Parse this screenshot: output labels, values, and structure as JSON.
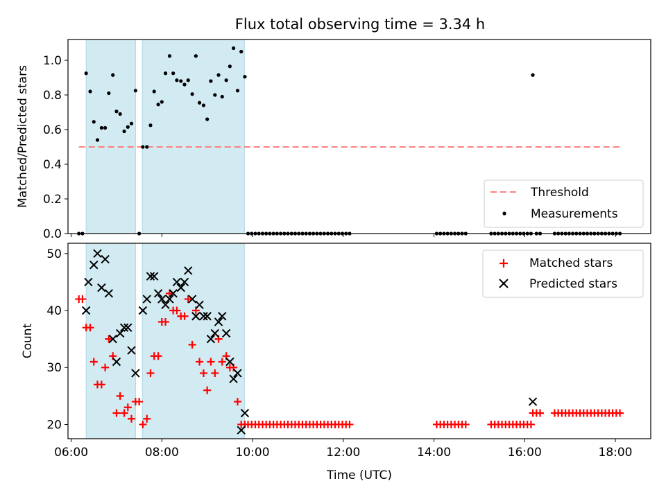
{
  "figure": {
    "title": "Flux total observing time = 3.34 h",
    "colors": {
      "shade": "#add8e6",
      "threshold": "#ff7f7f",
      "measurement": "#000000",
      "matched": "#ff0000",
      "predicted": "#000000"
    }
  },
  "chart_data": [
    {
      "type": "scatter",
      "title": "Flux total observing time = 3.34 h",
      "xlabel": "",
      "ylabel": "Matched/Predicted stars",
      "xlim": [
        5.93,
        18.78
      ],
      "ylim": [
        0,
        1.12
      ],
      "x_ticks": [
        "06:00",
        "08:00",
        "10:00",
        "12:00",
        "14:00",
        "16:00",
        "18:00"
      ],
      "x_tick_values": [
        6,
        8,
        10,
        12,
        14,
        16,
        18
      ],
      "y_ticks": [
        "0.0",
        "0.2",
        "0.4",
        "0.6",
        "0.8",
        "1.0"
      ],
      "y_tick_values": [
        0,
        0.2,
        0.4,
        0.6,
        0.8,
        1.0
      ],
      "shaded_intervals": [
        [
          6.33,
          7.42
        ],
        [
          7.57,
          9.82
        ]
      ],
      "legend": [
        "Threshold",
        "Measurements"
      ],
      "legend_position": "lower right",
      "threshold": {
        "name": "Threshold",
        "y": 0.5,
        "x_range": [
          6.17,
          18.1
        ]
      },
      "series": [
        {
          "name": "Measurements",
          "x": [
            6.17,
            6.25,
            6.33,
            6.42,
            6.5,
            6.58,
            6.67,
            6.75,
            6.83,
            6.92,
            7.0,
            7.08,
            7.17,
            7.25,
            7.33,
            7.42,
            7.5,
            7.58,
            7.67,
            7.75,
            7.83,
            7.92,
            8.0,
            8.08,
            8.17,
            8.25,
            8.33,
            8.42,
            8.5,
            8.58,
            8.67,
            8.75,
            8.83,
            8.92,
            9.0,
            9.08,
            9.17,
            9.25,
            9.33,
            9.42,
            9.5,
            9.58,
            9.67,
            9.75,
            9.83,
            9.9,
            9.98,
            10.06,
            10.14,
            10.22,
            10.3,
            10.38,
            10.46,
            10.54,
            10.62,
            10.7,
            10.78,
            10.86,
            10.94,
            11.02,
            11.1,
            11.18,
            11.26,
            11.34,
            11.42,
            11.5,
            11.58,
            11.66,
            11.74,
            11.82,
            11.9,
            11.98,
            12.06,
            12.14,
            14.06,
            14.14,
            14.22,
            14.3,
            14.38,
            14.46,
            14.54,
            14.62,
            14.7,
            15.26,
            15.34,
            15.42,
            15.5,
            15.58,
            15.66,
            15.74,
            15.82,
            15.9,
            15.98,
            16.06,
            16.14,
            16.18,
            16.26,
            16.34,
            16.66,
            16.74,
            16.82,
            16.9,
            16.98,
            17.06,
            17.14,
            17.22,
            17.3,
            17.38,
            17.46,
            17.54,
            17.62,
            17.7,
            17.78,
            17.86,
            17.94,
            18.02,
            18.1
          ],
          "y": [
            0.0,
            0.0,
            0.925,
            0.82,
            0.645,
            0.54,
            0.61,
            0.61,
            0.81,
            0.915,
            0.705,
            0.69,
            0.59,
            0.615,
            0.635,
            0.825,
            0.0,
            0.5,
            0.5,
            0.625,
            0.82,
            0.745,
            0.76,
            0.925,
            1.025,
            0.925,
            0.885,
            0.88,
            0.86,
            0.885,
            0.805,
            1.025,
            0.755,
            0.74,
            0.66,
            0.88,
            0.8,
            0.915,
            0.79,
            0.885,
            0.965,
            1.07,
            0.825,
            1.05,
            0.905,
            0.0,
            0.0,
            0.0,
            0.0,
            0.0,
            0.0,
            0.0,
            0.0,
            0.0,
            0.0,
            0.0,
            0.0,
            0.0,
            0.0,
            0.0,
            0.0,
            0.0,
            0.0,
            0.0,
            0.0,
            0.0,
            0.0,
            0.0,
            0.0,
            0.0,
            0.0,
            0.0,
            0.0,
            0.0,
            0.0,
            0.0,
            0.0,
            0.0,
            0.0,
            0.0,
            0.0,
            0.0,
            0.0,
            0.0,
            0.0,
            0.0,
            0.0,
            0.0,
            0.0,
            0.0,
            0.0,
            0.0,
            0.0,
            0.0,
            0.0,
            0.915,
            0.0,
            0.0,
            0.0,
            0.0,
            0.0,
            0.0,
            0.0,
            0.0,
            0.0,
            0.0,
            0.0,
            0.0,
            0.0,
            0.0,
            0.0,
            0.0,
            0.0,
            0.0,
            0.0,
            0.0,
            0.0
          ]
        }
      ]
    },
    {
      "type": "scatter",
      "title": "",
      "xlabel": "Time (UTC)",
      "ylabel": "Count",
      "xlim": [
        5.93,
        18.78
      ],
      "ylim": [
        17.5,
        51.8
      ],
      "x_ticks": [
        "06:00",
        "08:00",
        "10:00",
        "12:00",
        "14:00",
        "16:00",
        "18:00"
      ],
      "x_tick_values": [
        6,
        8,
        10,
        12,
        14,
        16,
        18
      ],
      "y_ticks": [
        "20",
        "30",
        "40",
        "50"
      ],
      "y_tick_values": [
        20,
        30,
        40,
        50
      ],
      "shaded_intervals": [
        [
          6.33,
          7.42
        ],
        [
          7.57,
          9.82
        ]
      ],
      "legend": [
        "Matched stars",
        "Predicted stars"
      ],
      "legend_position": "upper right",
      "series": [
        {
          "name": "Matched stars",
          "x": [
            6.17,
            6.25,
            6.33,
            6.42,
            6.5,
            6.58,
            6.67,
            6.75,
            6.83,
            6.92,
            7.0,
            7.08,
            7.17,
            7.25,
            7.33,
            7.42,
            7.5,
            7.58,
            7.67,
            7.75,
            7.83,
            7.92,
            8.0,
            8.08,
            8.17,
            8.25,
            8.33,
            8.42,
            8.5,
            8.58,
            8.67,
            8.75,
            8.83,
            8.92,
            9.0,
            9.08,
            9.17,
            9.25,
            9.33,
            9.42,
            9.5,
            9.58,
            9.67,
            9.75,
            9.83,
            9.9,
            9.98,
            10.06,
            10.14,
            10.22,
            10.3,
            10.38,
            10.46,
            10.54,
            10.62,
            10.7,
            10.78,
            10.86,
            10.94,
            11.02,
            11.1,
            11.18,
            11.26,
            11.34,
            11.42,
            11.5,
            11.58,
            11.66,
            11.74,
            11.82,
            11.9,
            11.98,
            12.06,
            12.14,
            14.06,
            14.14,
            14.22,
            14.3,
            14.38,
            14.46,
            14.54,
            14.62,
            14.7,
            15.26,
            15.34,
            15.42,
            15.5,
            15.58,
            15.66,
            15.74,
            15.82,
            15.9,
            15.98,
            16.06,
            16.14,
            16.18,
            16.26,
            16.34,
            16.66,
            16.74,
            16.82,
            16.9,
            16.98,
            17.06,
            17.14,
            17.22,
            17.3,
            17.38,
            17.46,
            17.54,
            17.62,
            17.7,
            17.78,
            17.86,
            17.94,
            18.02,
            18.1
          ],
          "y": [
            42,
            42,
            37,
            37,
            31,
            27,
            27,
            30,
            35,
            32,
            22,
            25,
            22,
            23,
            21,
            24,
            24,
            20,
            21,
            29,
            32,
            32,
            38,
            38,
            43,
            40,
            40,
            39,
            39,
            42,
            34,
            40,
            31,
            29,
            26,
            31,
            29,
            35,
            31,
            32,
            30,
            30,
            24,
            20,
            20,
            20,
            20,
            20,
            20,
            20,
            20,
            20,
            20,
            20,
            20,
            20,
            20,
            20,
            20,
            20,
            20,
            20,
            20,
            20,
            20,
            20,
            20,
            20,
            20,
            20,
            20,
            20,
            20,
            20,
            20,
            20,
            20,
            20,
            20,
            20,
            20,
            20,
            20,
            20,
            20,
            20,
            20,
            20,
            20,
            20,
            20,
            20,
            20,
            20,
            20,
            22,
            22,
            22,
            22,
            22,
            22,
            22,
            22,
            22,
            22,
            22,
            22,
            22,
            22,
            22,
            22,
            22,
            22,
            22,
            22,
            22,
            22
          ]
        },
        {
          "name": "Predicted stars",
          "x": [
            6.33,
            6.38,
            6.5,
            6.58,
            6.67,
            6.75,
            6.83,
            6.92,
            7.0,
            7.08,
            7.17,
            7.25,
            7.33,
            7.42,
            7.58,
            7.67,
            7.75,
            7.83,
            7.92,
            8.0,
            8.08,
            8.17,
            8.25,
            8.33,
            8.42,
            8.5,
            8.58,
            8.67,
            8.75,
            8.83,
            8.92,
            9.0,
            9.08,
            9.17,
            9.25,
            9.33,
            9.42,
            9.5,
            9.58,
            9.67,
            9.75,
            9.83,
            16.18
          ],
          "y": [
            40,
            45,
            48,
            50,
            44,
            49,
            43,
            35,
            31,
            36,
            37,
            37,
            33,
            29,
            40,
            42,
            46,
            46,
            43,
            42,
            41,
            42,
            43,
            45,
            44,
            45,
            47,
            42,
            39,
            41,
            39,
            39,
            35,
            36,
            38,
            39,
            36,
            31,
            28,
            29,
            19,
            22,
            24
          ]
        }
      ]
    }
  ]
}
